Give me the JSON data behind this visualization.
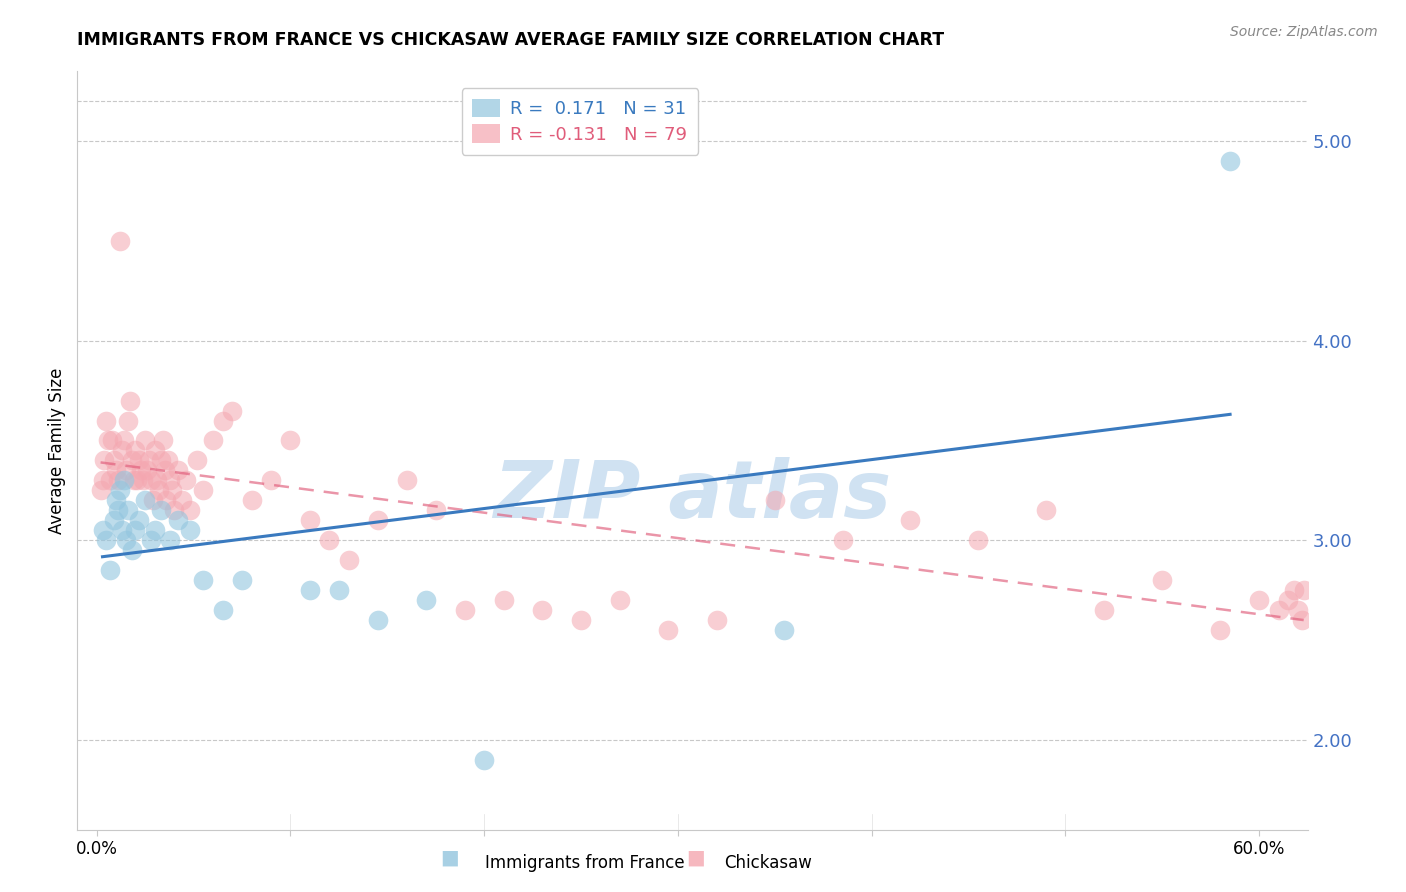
{
  "title": "IMMIGRANTS FROM FRANCE VS CHICKASAW AVERAGE FAMILY SIZE CORRELATION CHART",
  "source": "Source: ZipAtlas.com",
  "ylabel": "Average Family Size",
  "right_yticks": [
    2.0,
    3.0,
    4.0,
    5.0
  ],
  "legend_blue_r_val": "0.171",
  "legend_blue_n_val": "31",
  "legend_pink_r_val": "-0.131",
  "legend_pink_n_val": "79",
  "blue_color": "#92c5de",
  "pink_color": "#f4a6b0",
  "blue_line_color": "#3a7abf",
  "pink_line_color": "#e05c7a",
  "background_color": "#ffffff",
  "grid_color": "#c8c8c8",
  "right_axis_color": "#4472C4",
  "xlim": [
    -0.01,
    0.625
  ],
  "ylim": [
    1.55,
    5.35
  ],
  "watermark_color": "#c8ddf0",
  "blue_scatter_x": [
    0.003,
    0.005,
    0.007,
    0.009,
    0.01,
    0.011,
    0.012,
    0.013,
    0.014,
    0.015,
    0.016,
    0.018,
    0.02,
    0.022,
    0.025,
    0.028,
    0.03,
    0.033,
    0.038,
    0.042,
    0.048,
    0.055,
    0.065,
    0.075,
    0.11,
    0.125,
    0.145,
    0.17,
    0.2,
    0.355,
    0.585
  ],
  "blue_scatter_y": [
    3.05,
    3.0,
    2.85,
    3.1,
    3.2,
    3.15,
    3.25,
    3.05,
    3.3,
    3.0,
    3.15,
    2.95,
    3.05,
    3.1,
    3.2,
    3.0,
    3.05,
    3.15,
    3.0,
    3.1,
    3.05,
    2.8,
    2.65,
    2.8,
    2.75,
    2.75,
    2.6,
    2.7,
    1.9,
    2.55,
    4.9
  ],
  "pink_scatter_x": [
    0.002,
    0.003,
    0.004,
    0.005,
    0.006,
    0.007,
    0.008,
    0.009,
    0.01,
    0.011,
    0.012,
    0.013,
    0.014,
    0.015,
    0.016,
    0.017,
    0.018,
    0.019,
    0.02,
    0.021,
    0.022,
    0.023,
    0.024,
    0.025,
    0.026,
    0.027,
    0.028,
    0.029,
    0.03,
    0.031,
    0.032,
    0.033,
    0.034,
    0.035,
    0.036,
    0.037,
    0.038,
    0.039,
    0.04,
    0.042,
    0.044,
    0.046,
    0.048,
    0.052,
    0.055,
    0.06,
    0.065,
    0.07,
    0.08,
    0.09,
    0.1,
    0.11,
    0.12,
    0.13,
    0.145,
    0.16,
    0.175,
    0.19,
    0.21,
    0.23,
    0.25,
    0.27,
    0.295,
    0.32,
    0.35,
    0.385,
    0.42,
    0.455,
    0.49,
    0.52,
    0.55,
    0.58,
    0.6,
    0.61,
    0.615,
    0.618,
    0.62,
    0.622,
    0.623
  ],
  "pink_scatter_y": [
    3.25,
    3.3,
    3.4,
    3.6,
    3.5,
    3.3,
    3.5,
    3.4,
    3.35,
    3.3,
    4.5,
    3.45,
    3.5,
    3.35,
    3.6,
    3.7,
    3.4,
    3.3,
    3.45,
    3.3,
    3.4,
    3.35,
    3.3,
    3.5,
    3.35,
    3.4,
    3.3,
    3.2,
    3.45,
    3.3,
    3.25,
    3.4,
    3.5,
    3.35,
    3.2,
    3.4,
    3.3,
    3.25,
    3.15,
    3.35,
    3.2,
    3.3,
    3.15,
    3.4,
    3.25,
    3.5,
    3.6,
    3.65,
    3.2,
    3.3,
    3.5,
    3.1,
    3.0,
    2.9,
    3.1,
    3.3,
    3.15,
    2.65,
    2.7,
    2.65,
    2.6,
    2.7,
    2.55,
    2.6,
    3.2,
    3.0,
    3.1,
    3.0,
    3.15,
    2.65,
    2.8,
    2.55,
    2.7,
    2.65,
    2.7,
    2.75,
    2.65,
    2.6,
    2.75
  ]
}
